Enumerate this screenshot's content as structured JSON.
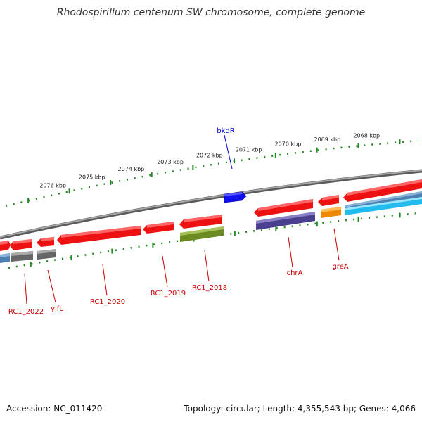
{
  "title": "Rhodospirillum centenum SW chromosome, complete genome",
  "ruler": {
    "tick_labels": [
      "2076 kbp",
      "2075 kbp",
      "2074 kbp",
      "2073 kbp",
      "2072 kbp",
      "2071 kbp",
      "2070 kbp",
      "2069 kbp",
      "2068 kbp"
    ]
  },
  "genes_top": [
    {
      "label": "bkdR",
      "color": "#0000cc",
      "fill": "#1111ee"
    }
  ],
  "genes_bottom": [
    {
      "label": "RC1_2022",
      "color": "#cc0000"
    },
    {
      "label": "yjfL",
      "color": "#cc0000"
    },
    {
      "label": "RC1_2020",
      "color": "#cc0000"
    },
    {
      "label": "RC1_2019",
      "color": "#cc0000"
    },
    {
      "label": "RC1_2018",
      "color": "#cc0000"
    },
    {
      "label": "chrA",
      "color": "#cc0000"
    },
    {
      "label": "greA",
      "color": "#cc0000"
    }
  ],
  "colors": {
    "gene_red": "#ee1111",
    "gene_olive": "#6b8a22",
    "gene_purple": "#4a3f8e",
    "gene_gray": "#666666",
    "gene_steel": "#4d7fb0",
    "gene_orange": "#ee8800",
    "gene_cyan": "#22bbee",
    "backbone": "#888888",
    "ruler": "#228822"
  },
  "footer": {
    "accession": "Accession: NC_011420",
    "stats": "Topology: circular; Length: 4,355,543 bp; Genes: 4,066"
  }
}
